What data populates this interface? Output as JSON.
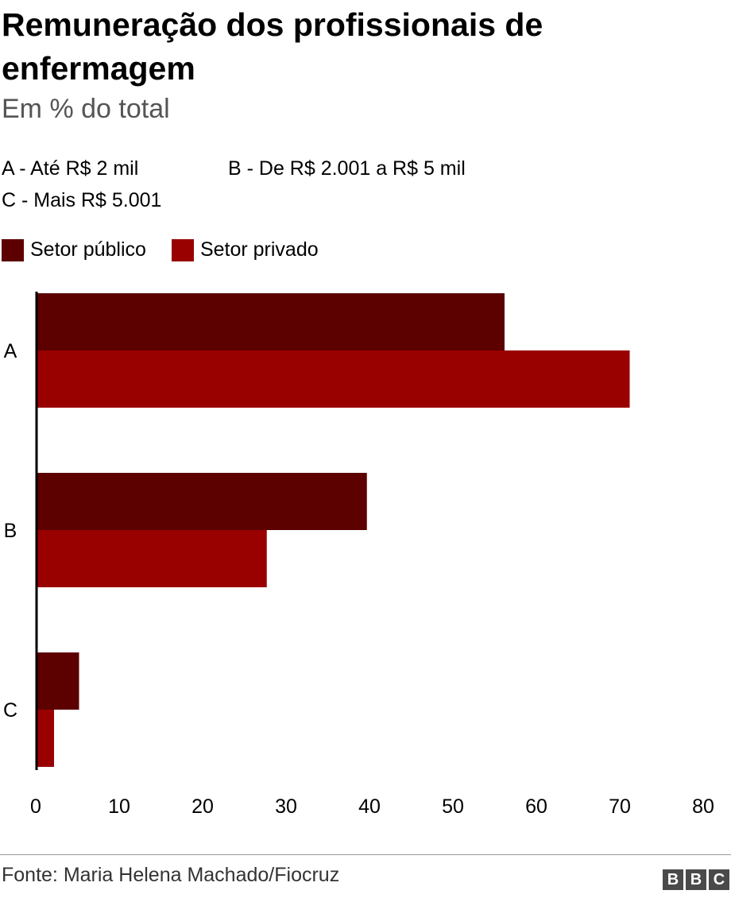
{
  "title": "Remuneração dos profissionais de enfermagem",
  "subtitle": "Em % do total",
  "notes": {
    "a": "A - Até R$ 2 mil",
    "b": "B - De R$ 2.001 a R$ 5 mil",
    "c": "C - Mais R$ 5.001"
  },
  "source": "Fonte: Maria Helena Machado/Fiocruz",
  "logo": [
    "B",
    "B",
    "C"
  ],
  "colors": {
    "setor_publico": "#5c0000",
    "setor_privado": "#990000",
    "axis": "#000000"
  },
  "chart_data": {
    "type": "bar",
    "orientation": "horizontal",
    "categories": [
      "A",
      "B",
      "C"
    ],
    "series": [
      {
        "name": "Setor público",
        "values": [
          56,
          39.5,
          5
        ]
      },
      {
        "name": "Setor privado",
        "values": [
          71,
          27.5,
          2
        ]
      }
    ],
    "xlim": [
      0,
      80
    ],
    "xticks": [
      0,
      10,
      20,
      30,
      40,
      50,
      60,
      70,
      80
    ],
    "legend_position": "top-left",
    "grid": false
  }
}
